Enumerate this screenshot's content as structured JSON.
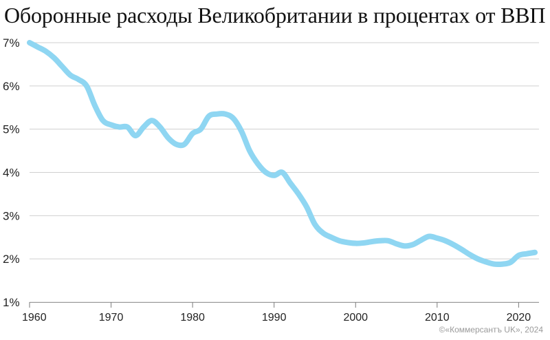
{
  "chart_data": {
    "type": "line",
    "title": "Оборонные расходы Великобритании в процентах от ВВП",
    "xlabel": "",
    "ylabel": "",
    "xlim": [
      1960,
      2022.5
    ],
    "ylim": [
      1,
      7
    ],
    "x_ticks": [
      "1960",
      "1970",
      "1980",
      "1990",
      "2000",
      "2010",
      "2020"
    ],
    "y_ticks": [
      "1%",
      "2%",
      "3%",
      "4%",
      "5%",
      "6%",
      "7%"
    ],
    "grid": "horizontal",
    "series_color": "#8fd6f2",
    "series": [
      {
        "x": [
          1960,
          1961,
          1962,
          1963,
          1964,
          1965,
          1966,
          1967,
          1968,
          1969,
          1970,
          1971,
          1972,
          1973,
          1974,
          1975,
          1976,
          1977,
          1978,
          1979,
          1980,
          1981,
          1982,
          1983,
          1984,
          1985,
          1986,
          1987,
          1988,
          1989,
          1990,
          1991,
          1992,
          1993,
          1994,
          1995,
          1996,
          1997,
          1998,
          1999,
          2000,
          2001,
          2002,
          2003,
          2004,
          2005,
          2006,
          2007,
          2008,
          2009,
          2010,
          2011,
          2012,
          2013,
          2014,
          2015,
          2016,
          2017,
          2018,
          2019,
          2020,
          2021,
          2022
        ],
        "values": [
          7.0,
          6.9,
          6.8,
          6.65,
          6.45,
          6.25,
          6.15,
          6.0,
          5.55,
          5.2,
          5.1,
          5.05,
          5.05,
          4.85,
          5.05,
          5.2,
          5.05,
          4.8,
          4.65,
          4.65,
          4.9,
          5.0,
          5.3,
          5.35,
          5.35,
          5.25,
          4.95,
          4.5,
          4.2,
          4.0,
          3.93,
          4.0,
          3.75,
          3.5,
          3.2,
          2.8,
          2.6,
          2.5,
          2.42,
          2.38,
          2.36,
          2.37,
          2.4,
          2.42,
          2.42,
          2.35,
          2.3,
          2.33,
          2.43,
          2.52,
          2.48,
          2.42,
          2.33,
          2.22,
          2.1,
          2.0,
          1.93,
          1.88,
          1.88,
          1.92,
          2.08,
          2.12,
          2.15
        ]
      }
    ]
  },
  "credit": "©«Коммерсантъ UK», 2024"
}
